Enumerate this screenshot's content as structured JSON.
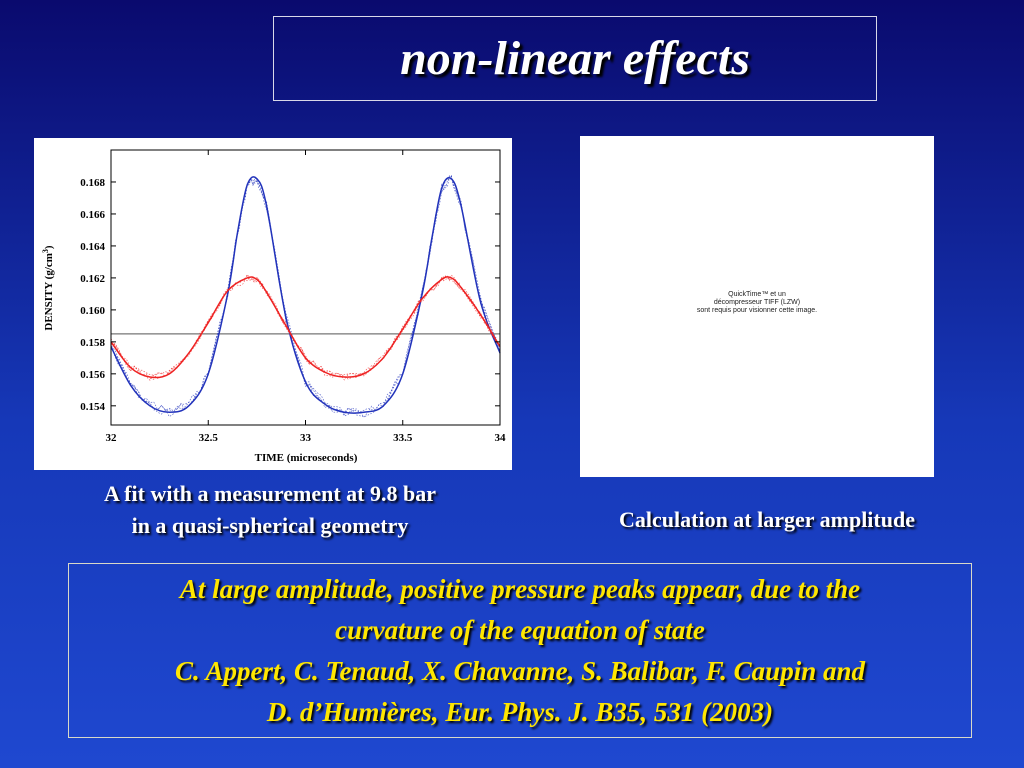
{
  "title": "non-linear effects",
  "chart_data": {
    "type": "line",
    "xlabel": "TIME  (microseconds)",
    "ylabel_main": "DENSITY  (g/cm",
    "ylabel_sup": "3",
    "ylabel_close": ")",
    "xlim": [
      32,
      34
    ],
    "ylim": [
      0.1528,
      0.17
    ],
    "x_ticks": [
      "32",
      "32.5",
      "33",
      "33.5",
      "34"
    ],
    "x_tick_values": [
      32,
      32.5,
      33,
      33.5,
      34
    ],
    "y_ticks": [
      "0.154",
      "0.156",
      "0.158",
      "0.160",
      "0.162",
      "0.164",
      "0.166",
      "0.168"
    ],
    "y_tick_values": [
      0.154,
      0.156,
      0.158,
      0.16,
      0.162,
      0.164,
      0.166,
      0.168
    ],
    "reference_line": 0.1585,
    "grid": false,
    "series": [
      {
        "color": "#2233bb",
        "style": "solid",
        "x": [
          32.0,
          32.1,
          32.2,
          32.3,
          32.4,
          32.5,
          32.6,
          32.65,
          32.7,
          32.75,
          32.8,
          32.9,
          33.0,
          33.1,
          33.2,
          33.3,
          33.4,
          33.5,
          33.6,
          33.65,
          33.7,
          33.75,
          33.8,
          33.9,
          34.0
        ],
        "y": [
          0.1577,
          0.1553,
          0.154,
          0.1536,
          0.154,
          0.156,
          0.161,
          0.1648,
          0.1678,
          0.1682,
          0.1665,
          0.1595,
          0.1555,
          0.1541,
          0.1536,
          0.1536,
          0.154,
          0.156,
          0.161,
          0.1645,
          0.1676,
          0.1682,
          0.1665,
          0.1605,
          0.1573
        ]
      },
      {
        "color": "#ee2222",
        "style": "solid",
        "x": [
          32.0,
          32.1,
          32.2,
          32.3,
          32.4,
          32.5,
          32.6,
          32.7,
          32.75,
          32.8,
          32.9,
          33.0,
          33.1,
          33.2,
          33.3,
          33.4,
          33.5,
          33.6,
          33.7,
          33.75,
          33.8,
          33.9,
          34.0
        ],
        "y": [
          0.158,
          0.1564,
          0.1558,
          0.156,
          0.1573,
          0.1592,
          0.1612,
          0.162,
          0.1619,
          0.1611,
          0.159,
          0.157,
          0.1561,
          0.1558,
          0.156,
          0.157,
          0.1588,
          0.1607,
          0.1619,
          0.162,
          0.1614,
          0.1597,
          0.1577
        ]
      }
    ]
  },
  "left_caption": {
    "line1": "A fit with a measurement at 9.8 bar",
    "line2": "in a quasi-spherical geometry"
  },
  "quicktime_placeholder": {
    "line1": "QuickTime™ et un",
    "line2": "décompresseur TIFF (LZW)",
    "line3": "sont requis pour visionner cette image."
  },
  "right_caption": "Calculation at larger amplitude",
  "note": {
    "line1": "At large amplitude, positive pressure peaks  appear, due to the",
    "line2": "curvature of the equation of state",
    "line3": "C. Appert, C. Tenaud, X. Chavanne, S. Balibar, F. Caupin and",
    "line4": "D. d’Humières, Eur. Phys. J. B35, 531 (2003)"
  }
}
